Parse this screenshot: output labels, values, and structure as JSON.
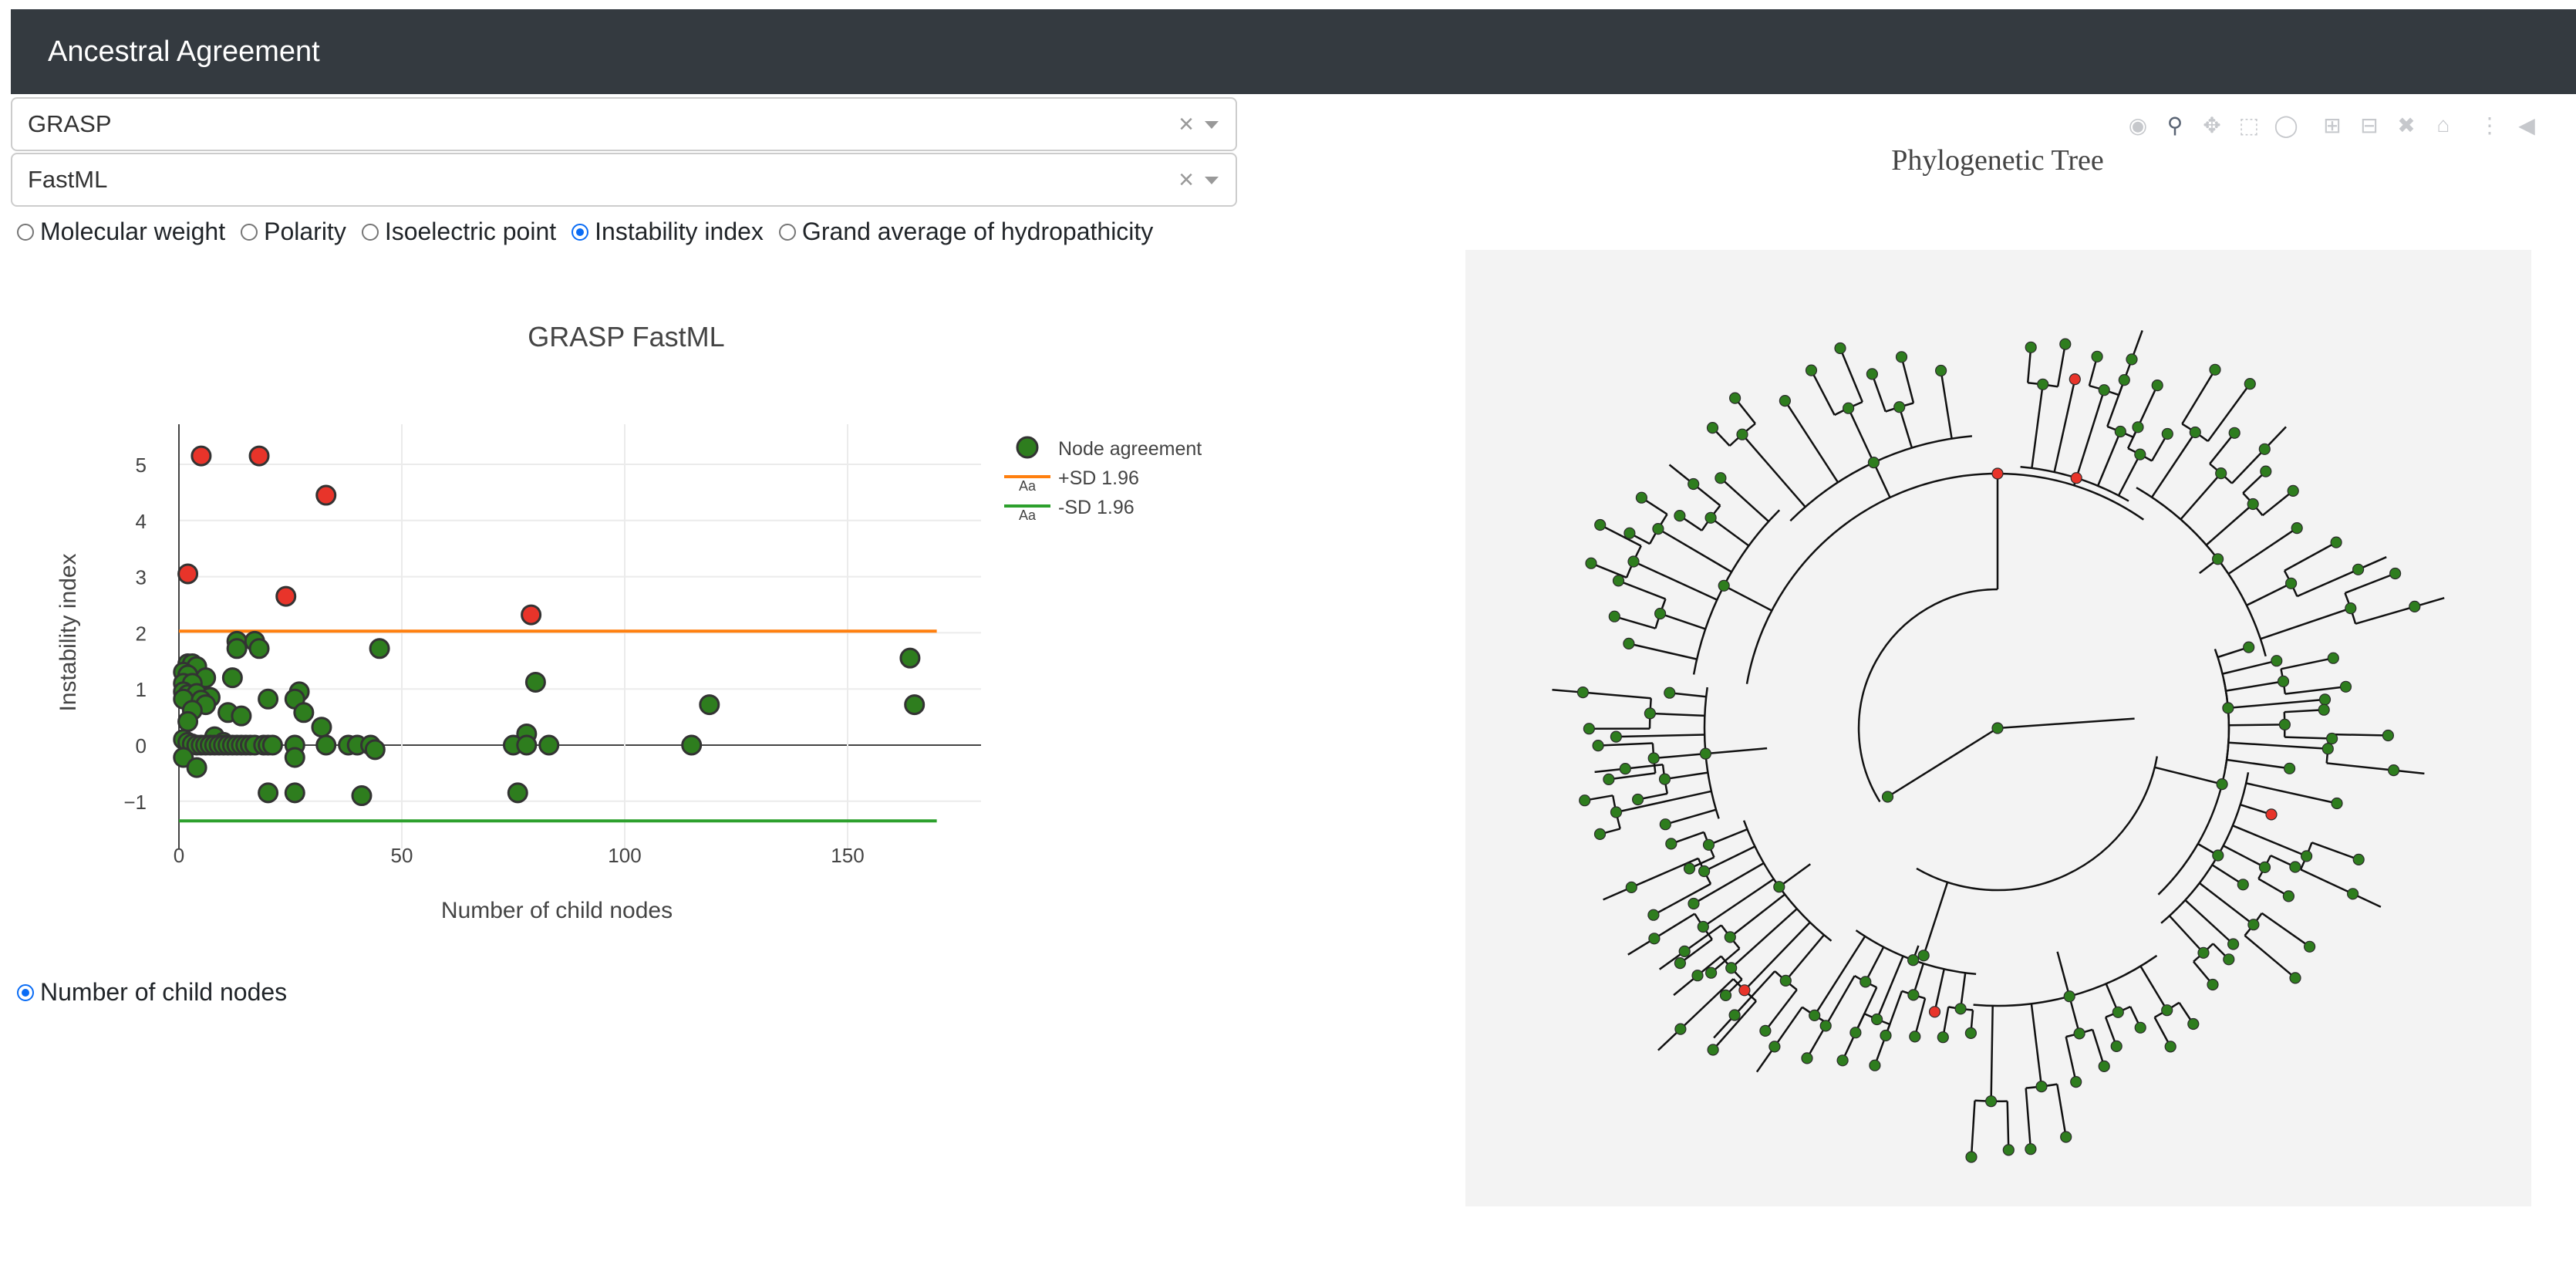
{
  "navbar": {
    "title": "Ancestral Agreement"
  },
  "selectors": [
    {
      "value": "GRASP",
      "clear": "×"
    },
    {
      "value": "FastML",
      "clear": "×"
    }
  ],
  "metric_options": [
    {
      "label": "Molecular weight",
      "selected": false
    },
    {
      "label": "Polarity",
      "selected": false
    },
    {
      "label": "Isoelectric point",
      "selected": false
    },
    {
      "label": "Instability index",
      "selected": true
    },
    {
      "label": "Grand average of hydropathicity",
      "selected": false
    }
  ],
  "xaxis_options": [
    {
      "label": "Number of child nodes",
      "selected": true
    }
  ],
  "scatter": {
    "title": "GRASP FastML",
    "xlabel": "Number of child nodes",
    "ylabel": "Instability index",
    "legend": [
      {
        "label": "Node agreement",
        "swatch": "Aa"
      },
      {
        "label": "+SD 1.96",
        "swatch": "Aa"
      },
      {
        "label": "-SD 1.96",
        "swatch": "Aa"
      }
    ],
    "x_ticks": [
      "0",
      "50",
      "100",
      "150"
    ],
    "y_ticks": [
      "5",
      "4",
      "3",
      "2",
      "1",
      "0",
      "−1"
    ]
  },
  "chart_data": {
    "type": "scatter",
    "title": "GRASP FastML",
    "xlabel": "Number of child nodes",
    "ylabel": "Instability index",
    "xlim": [
      0,
      180
    ],
    "ylim": [
      -1.5,
      5.6
    ],
    "grid": true,
    "legend_position": "top-right",
    "reference_lines": [
      {
        "name": "+SD 1.96",
        "y": 2.03,
        "color": "#ff7f0e"
      },
      {
        "name": "-SD 1.96",
        "y": -1.35,
        "color": "#2ca02c"
      }
    ],
    "series": [
      {
        "name": "Node agreement",
        "points": [
          [
            5,
            5.15
          ],
          [
            18,
            5.15
          ],
          [
            33,
            4.45
          ],
          [
            2,
            3.05
          ],
          [
            24,
            2.65
          ],
          [
            79,
            2.32
          ],
          [
            13,
            1.85
          ],
          [
            17,
            1.85
          ],
          [
            13,
            1.72
          ],
          [
            18,
            1.72
          ],
          [
            45,
            1.72
          ],
          [
            164,
            1.55
          ],
          [
            2,
            1.45
          ],
          [
            3,
            1.45
          ],
          [
            4,
            1.4
          ],
          [
            1,
            1.3
          ],
          [
            2,
            1.25
          ],
          [
            6,
            1.2
          ],
          [
            12,
            1.2
          ],
          [
            80,
            1.12
          ],
          [
            1,
            1.1
          ],
          [
            3,
            1.1
          ],
          [
            1,
            0.95
          ],
          [
            2,
            0.9
          ],
          [
            4,
            0.92
          ],
          [
            7,
            0.85
          ],
          [
            27,
            0.95
          ],
          [
            1,
            0.82
          ],
          [
            5,
            0.8
          ],
          [
            6,
            0.72
          ],
          [
            20,
            0.82
          ],
          [
            26,
            0.82
          ],
          [
            119,
            0.72
          ],
          [
            165,
            0.72
          ],
          [
            3,
            0.62
          ],
          [
            11,
            0.58
          ],
          [
            14,
            0.52
          ],
          [
            28,
            0.58
          ],
          [
            2,
            0.42
          ],
          [
            32,
            0.32
          ],
          [
            78,
            0.2
          ],
          [
            8,
            0.15
          ],
          [
            10,
            0.05
          ],
          [
            1,
            0.1
          ],
          [
            2,
            0.05
          ],
          [
            3,
            0.02
          ],
          [
            4,
            0
          ],
          [
            5,
            0
          ],
          [
            6,
            0
          ],
          [
            7,
            0
          ],
          [
            8,
            0
          ],
          [
            9,
            0
          ],
          [
            10,
            0
          ],
          [
            11,
            0
          ],
          [
            12,
            0
          ],
          [
            13,
            0
          ],
          [
            14,
            0
          ],
          [
            15,
            0
          ],
          [
            16,
            0
          ],
          [
            17,
            0
          ],
          [
            19,
            0
          ],
          [
            20,
            0
          ],
          [
            21,
            0
          ],
          [
            26,
            0
          ],
          [
            33,
            0
          ],
          [
            38,
            0
          ],
          [
            40,
            0
          ],
          [
            43,
            0
          ],
          [
            44,
            -0.08
          ],
          [
            75,
            0
          ],
          [
            78,
            0
          ],
          [
            83,
            0
          ],
          [
            115,
            0
          ],
          [
            1,
            -0.22
          ],
          [
            4,
            -0.4
          ],
          [
            26,
            -0.22
          ],
          [
            20,
            -0.85
          ],
          [
            26,
            -0.85
          ],
          [
            41,
            -0.9
          ],
          [
            76,
            -0.85
          ]
        ],
        "color": "#2e7d1e"
      },
      {
        "name": "Node agreement (red)",
        "color": "#e8342a"
      }
    ]
  },
  "tree": {
    "title": "Phylogenetic Tree",
    "background": "#f3f3f3"
  },
  "modebar": {
    "buttons": [
      "camera-icon",
      "zoom-icon",
      "pan-icon",
      "box-select-icon",
      "lasso-icon",
      "zoom-in-icon",
      "zoom-out-icon",
      "autoscale-icon",
      "reset-icon",
      "spike-icon",
      "hover-icon"
    ]
  },
  "colors": {
    "navbar": "#343a40",
    "green": "#2e7d1e",
    "red": "#e8342a",
    "orange": "#ff7f0e",
    "lightgreen": "#2ca02c",
    "radio": "#0a6cf5"
  }
}
